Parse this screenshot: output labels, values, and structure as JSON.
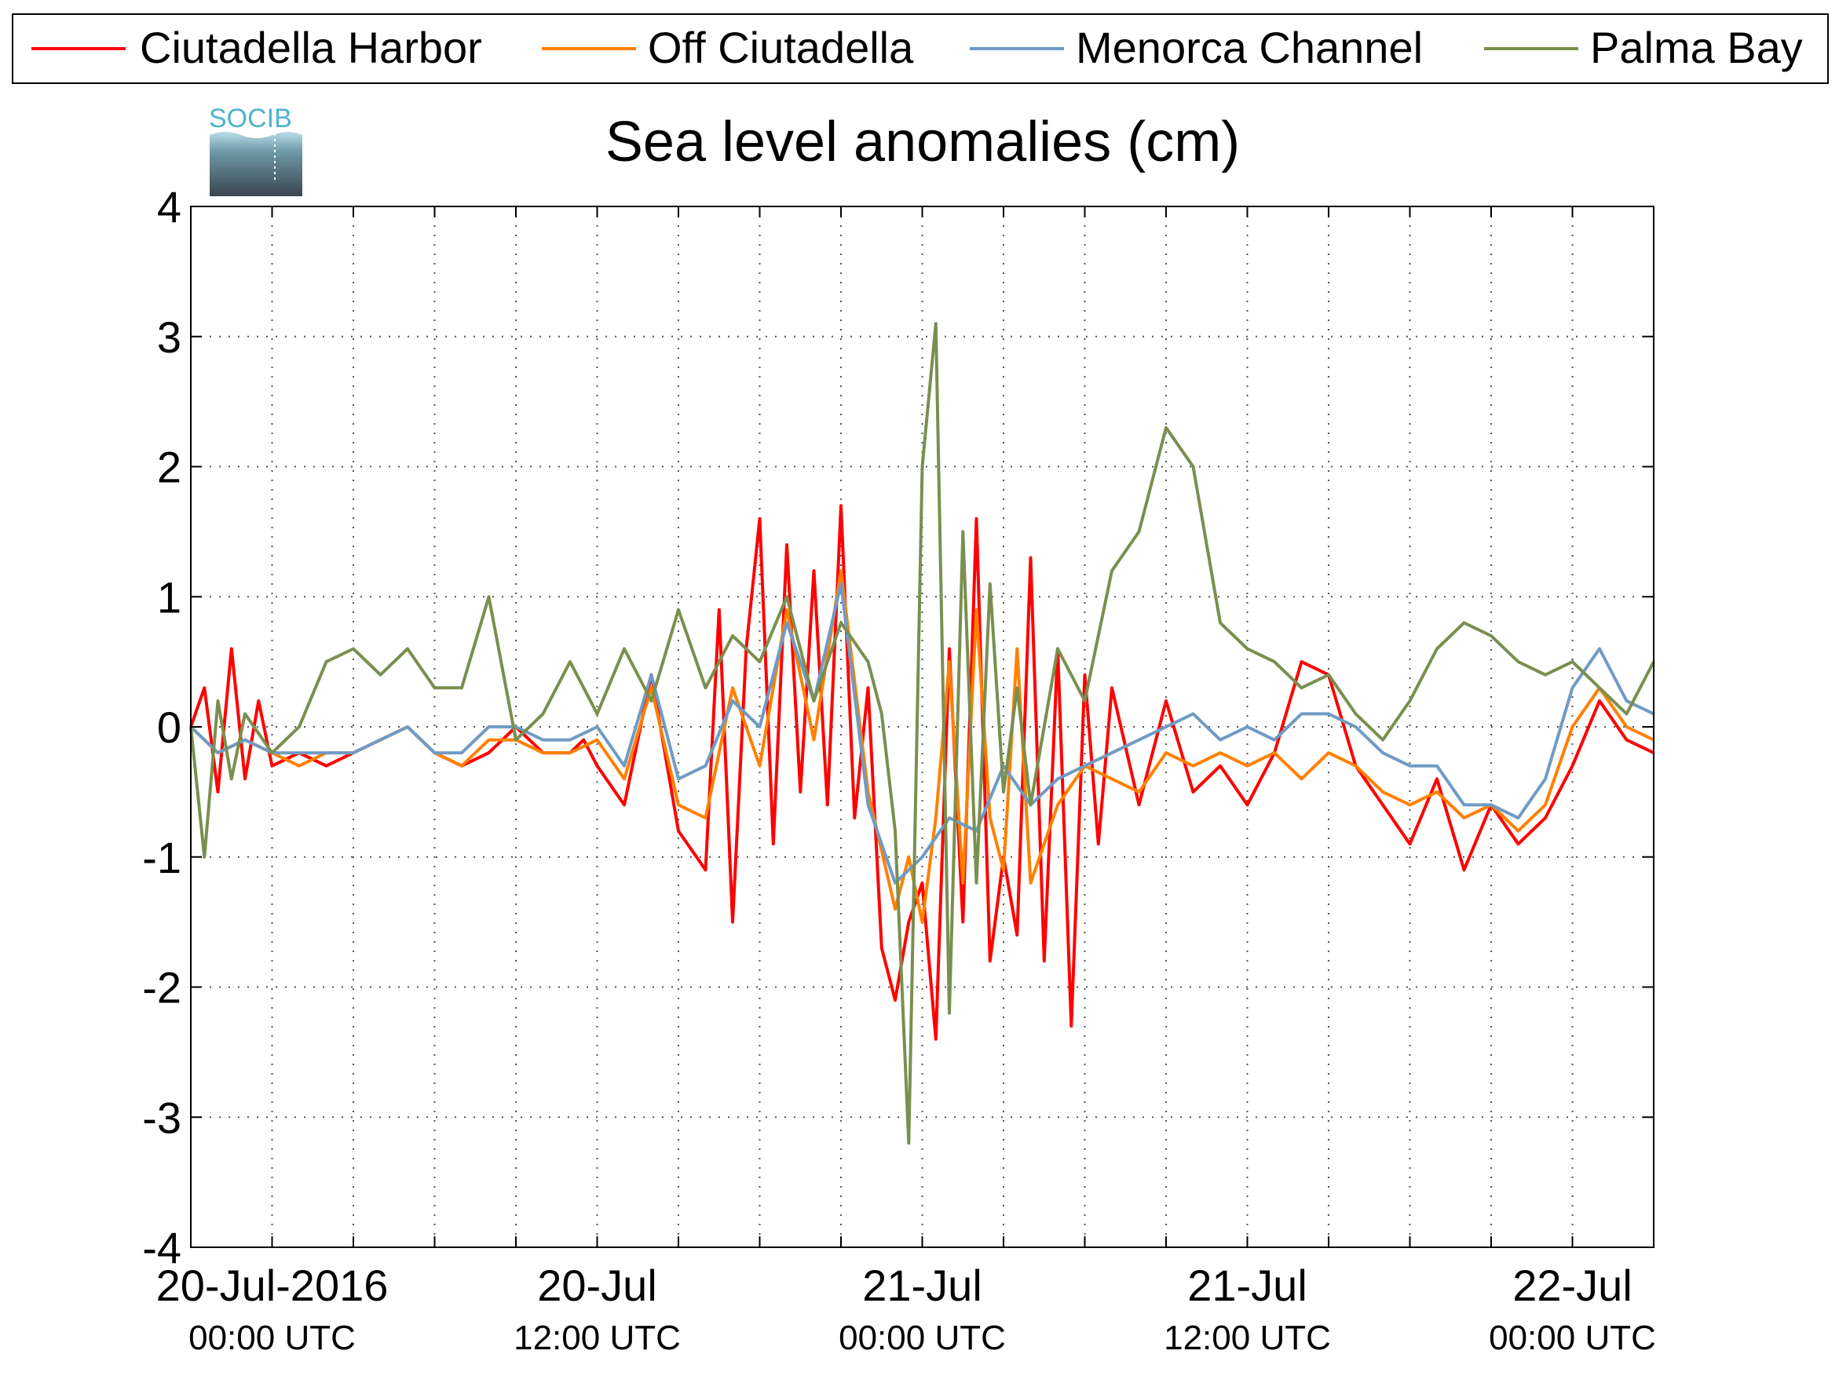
{
  "chart_data": {
    "type": "line",
    "title": "Sea level anomalies (cm)",
    "xlabel": "",
    "ylabel": "",
    "ylim": [
      -4,
      4
    ],
    "xlim": [
      "20-Jul-2016 00:00 UTC",
      "22-Jul-2016 03:00 UTC"
    ],
    "y_ticks": [
      4,
      3,
      2,
      1,
      0,
      -1,
      -2,
      -3,
      -4
    ],
    "y_tick_labels": [
      "4",
      "3",
      "2",
      "1",
      "0",
      "-1",
      "-2",
      "-3",
      "-4"
    ],
    "x_tick_labels": [
      {
        "date": "20-Jul-2016",
        "time": "00:00 UTC"
      },
      {
        "date": "20-Jul",
        "time": "12:00 UTC"
      },
      {
        "date": "21-Jul",
        "time": "00:00 UTC"
      },
      {
        "date": "21-Jul",
        "time": "12:00 UTC"
      },
      {
        "date": "22-Jul",
        "time": "00:00 UTC"
      }
    ],
    "grid": "dotted",
    "legend_position": "top",
    "series": [
      {
        "name": "Ciutadella Harbor",
        "color": "#ff0000",
        "x_hours": [
          -3.0,
          -2.5,
          -2.0,
          -1.5,
          -1.0,
          -0.5,
          0.0,
          1.0,
          2.0,
          3.0,
          4.0,
          5.0,
          6.0,
          7.0,
          8.0,
          9.0,
          10.0,
          11.0,
          11.5,
          12.0,
          13.0,
          14.0,
          14.5,
          15.0,
          16.0,
          16.5,
          17.0,
          17.5,
          18.0,
          18.5,
          19.0,
          19.5,
          20.0,
          20.5,
          21.0,
          21.5,
          22.0,
          22.5,
          23.0,
          23.5,
          24.0,
          24.5,
          25.0,
          25.5,
          26.0,
          26.5,
          27.0,
          27.5,
          28.0,
          28.5,
          29.0,
          29.5,
          30.0,
          30.5,
          31.0,
          32.0,
          33.0,
          34.0,
          35.0,
          36.0,
          37.0,
          38.0,
          39.0,
          40.0,
          41.0,
          42.0,
          43.0,
          44.0,
          45.0,
          46.0,
          47.0,
          48.0,
          49.0,
          50.0,
          51.0
        ],
        "values": [
          0.0,
          0.3,
          -0.5,
          0.6,
          -0.4,
          0.2,
          -0.3,
          -0.2,
          -0.3,
          -0.2,
          -0.1,
          0.0,
          -0.2,
          -0.3,
          -0.2,
          0.0,
          -0.2,
          -0.2,
          -0.1,
          -0.3,
          -0.6,
          0.4,
          -0.2,
          -0.8,
          -1.1,
          0.9,
          -1.5,
          0.6,
          1.6,
          -0.9,
          1.4,
          -0.5,
          1.2,
          -0.6,
          1.7,
          -0.7,
          0.3,
          -1.7,
          -2.1,
          -1.5,
          -1.2,
          -2.4,
          0.6,
          -1.5,
          1.6,
          -1.8,
          -1.0,
          -1.6,
          1.3,
          -1.8,
          0.6,
          -2.3,
          0.4,
          -0.9,
          0.3,
          -0.6,
          0.2,
          -0.5,
          -0.3,
          -0.6,
          -0.2,
          0.5,
          0.4,
          -0.3,
          -0.6,
          -0.9,
          -0.4,
          -1.1,
          -0.6,
          -0.9,
          -0.7,
          -0.3,
          0.2,
          -0.1,
          -0.2
        ]
      },
      {
        "name": "Off Ciutadella",
        "color": "#ff8000",
        "x_hours": [
          -3.0,
          -2.0,
          -1.0,
          0.0,
          1.0,
          2.0,
          3.0,
          4.0,
          5.0,
          6.0,
          7.0,
          8.0,
          9.0,
          10.0,
          11.0,
          12.0,
          13.0,
          14.0,
          15.0,
          16.0,
          17.0,
          18.0,
          19.0,
          20.0,
          21.0,
          22.0,
          23.0,
          23.5,
          24.0,
          24.5,
          25.0,
          25.5,
          26.0,
          26.5,
          27.0,
          27.5,
          28.0,
          29.0,
          30.0,
          31.0,
          32.0,
          33.0,
          34.0,
          35.0,
          36.0,
          37.0,
          38.0,
          39.0,
          40.0,
          41.0,
          42.0,
          43.0,
          44.0,
          45.0,
          46.0,
          47.0,
          48.0,
          49.0,
          50.0,
          51.0
        ],
        "values": [
          0.0,
          -0.2,
          -0.1,
          -0.2,
          -0.3,
          -0.2,
          -0.2,
          -0.1,
          0.0,
          -0.2,
          -0.3,
          -0.1,
          -0.1,
          -0.2,
          -0.2,
          -0.1,
          -0.4,
          0.3,
          -0.6,
          -0.7,
          0.3,
          -0.3,
          0.9,
          -0.1,
          1.2,
          -0.5,
          -1.4,
          -1.0,
          -1.5,
          -0.7,
          0.5,
          -1.2,
          0.9,
          -0.7,
          -1.1,
          0.6,
          -1.2,
          -0.6,
          -0.3,
          -0.4,
          -0.5,
          -0.2,
          -0.3,
          -0.2,
          -0.3,
          -0.2,
          -0.4,
          -0.2,
          -0.3,
          -0.5,
          -0.6,
          -0.5,
          -0.7,
          -0.6,
          -0.8,
          -0.6,
          0.0,
          0.3,
          0.0,
          -0.1
        ]
      },
      {
        "name": "Menorca Channel",
        "color": "#6f9bc4",
        "x_hours": [
          -3.0,
          -2.0,
          -1.0,
          0.0,
          1.0,
          2.0,
          3.0,
          4.0,
          5.0,
          6.0,
          7.0,
          8.0,
          9.0,
          10.0,
          11.0,
          12.0,
          13.0,
          14.0,
          15.0,
          16.0,
          17.0,
          18.0,
          19.0,
          20.0,
          21.0,
          22.0,
          23.0,
          24.0,
          25.0,
          26.0,
          27.0,
          28.0,
          29.0,
          30.0,
          31.0,
          32.0,
          33.0,
          34.0,
          35.0,
          36.0,
          37.0,
          38.0,
          39.0,
          40.0,
          41.0,
          42.0,
          43.0,
          44.0,
          45.0,
          46.0,
          47.0,
          48.0,
          49.0,
          50.0,
          51.0
        ],
        "values": [
          0.0,
          -0.2,
          -0.1,
          -0.2,
          -0.2,
          -0.2,
          -0.2,
          -0.1,
          0.0,
          -0.2,
          -0.2,
          0.0,
          0.0,
          -0.1,
          -0.1,
          0.0,
          -0.3,
          0.4,
          -0.4,
          -0.3,
          0.2,
          0.0,
          0.8,
          0.2,
          1.1,
          -0.6,
          -1.2,
          -1.0,
          -0.7,
          -0.8,
          -0.3,
          -0.6,
          -0.4,
          -0.3,
          -0.2,
          -0.1,
          0.0,
          0.1,
          -0.1,
          0.0,
          -0.1,
          0.1,
          0.1,
          0.0,
          -0.2,
          -0.3,
          -0.3,
          -0.6,
          -0.6,
          -0.7,
          -0.4,
          0.3,
          0.6,
          0.2,
          0.1
        ]
      },
      {
        "name": "Palma Bay",
        "color": "#7a8f4f",
        "x_hours": [
          -3.0,
          -2.5,
          -2.0,
          -1.5,
          -1.0,
          0.0,
          1.0,
          2.0,
          3.0,
          4.0,
          5.0,
          6.0,
          7.0,
          8.0,
          9.0,
          10.0,
          11.0,
          12.0,
          13.0,
          14.0,
          15.0,
          16.0,
          17.0,
          18.0,
          19.0,
          20.0,
          21.0,
          22.0,
          22.5,
          23.0,
          23.5,
          24.0,
          24.5,
          25.0,
          25.5,
          26.0,
          26.5,
          27.0,
          27.5,
          28.0,
          29.0,
          30.0,
          31.0,
          32.0,
          33.0,
          34.0,
          35.0,
          36.0,
          37.0,
          38.0,
          39.0,
          40.0,
          41.0,
          42.0,
          43.0,
          44.0,
          45.0,
          46.0,
          47.0,
          48.0,
          49.0,
          50.0,
          51.0
        ],
        "values": [
          0.0,
          -1.0,
          0.2,
          -0.4,
          0.1,
          -0.2,
          0.0,
          0.5,
          0.6,
          0.4,
          0.6,
          0.3,
          0.3,
          1.0,
          -0.1,
          0.1,
          0.5,
          0.1,
          0.6,
          0.2,
          0.9,
          0.3,
          0.7,
          0.5,
          1.0,
          0.2,
          0.8,
          0.5,
          0.1,
          -0.8,
          -3.2,
          2.0,
          3.1,
          -2.2,
          1.5,
          -1.2,
          1.1,
          -0.5,
          0.3,
          -0.6,
          0.6,
          0.2,
          1.2,
          1.5,
          2.3,
          2.0,
          0.8,
          0.6,
          0.5,
          0.3,
          0.4,
          0.1,
          -0.1,
          0.2,
          0.6,
          0.8,
          0.7,
          0.5,
          0.4,
          0.5,
          0.3,
          0.1,
          0.5
        ]
      }
    ]
  },
  "logo": {
    "text": "SOCIB"
  }
}
